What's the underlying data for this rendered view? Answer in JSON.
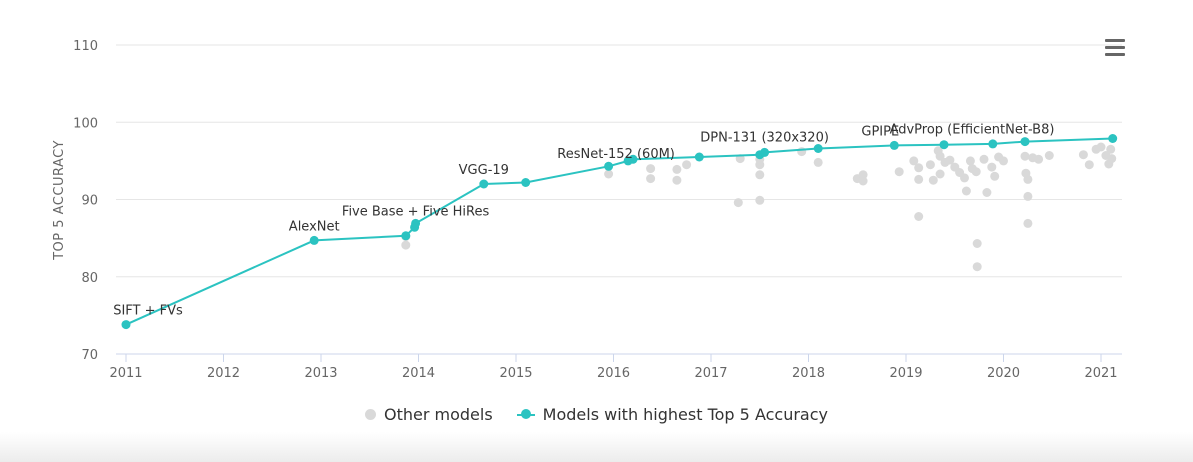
{
  "chart_data": {
    "type": "scatter",
    "ylabel": "TOP 5 ACCURACY",
    "xlabel": "",
    "xlim": [
      2010.9,
      2021.2
    ],
    "ylim": [
      70,
      110
    ],
    "x_ticks": [
      "2011",
      "2012",
      "2013",
      "2014",
      "2015",
      "2016",
      "2017",
      "2018",
      "2019",
      "2020",
      "2021"
    ],
    "y_ticks": [
      "70",
      "80",
      "90",
      "100",
      "110"
    ],
    "grid": true,
    "legend_position": "bottom",
    "colors": {
      "sota": "#2bc3c1",
      "other": "#d9d9d9",
      "grid": "#e6e6e6",
      "axis": "#ccd6eb",
      "text": "#666666"
    },
    "series": [
      {
        "name": "Other models",
        "points": [
          [
            2013.87,
            84.1
          ],
          [
            2013.87,
            85.2
          ],
          [
            2015.95,
            93.3
          ],
          [
            2016.38,
            94.0
          ],
          [
            2016.38,
            92.7
          ],
          [
            2016.65,
            93.9
          ],
          [
            2016.65,
            92.5
          ],
          [
            2016.75,
            94.5
          ],
          [
            2017.28,
            89.6
          ],
          [
            2017.3,
            95.3
          ],
          [
            2017.5,
            89.9
          ],
          [
            2017.5,
            93.2
          ],
          [
            2017.5,
            94.5
          ],
          [
            2017.5,
            95.2
          ],
          [
            2017.93,
            96.2
          ],
          [
            2018.1,
            94.8
          ],
          [
            2018.5,
            92.7
          ],
          [
            2018.56,
            93.2
          ],
          [
            2018.56,
            92.4
          ],
          [
            2018.93,
            93.6
          ],
          [
            2019.08,
            95.0
          ],
          [
            2019.13,
            94.1
          ],
          [
            2019.13,
            92.6
          ],
          [
            2019.13,
            87.8
          ],
          [
            2019.25,
            94.5
          ],
          [
            2019.28,
            92.5
          ],
          [
            2019.33,
            96.3
          ],
          [
            2019.35,
            95.6
          ],
          [
            2019.35,
            93.3
          ],
          [
            2019.4,
            94.8
          ],
          [
            2019.45,
            95.1
          ],
          [
            2019.5,
            94.2
          ],
          [
            2019.55,
            93.5
          ],
          [
            2019.6,
            92.8
          ],
          [
            2019.62,
            91.1
          ],
          [
            2019.66,
            95.0
          ],
          [
            2019.68,
            94.0
          ],
          [
            2019.72,
            93.6
          ],
          [
            2019.73,
            84.3
          ],
          [
            2019.73,
            81.3
          ],
          [
            2019.8,
            95.2
          ],
          [
            2019.83,
            90.9
          ],
          [
            2019.88,
            94.2
          ],
          [
            2019.91,
            93.0
          ],
          [
            2019.95,
            95.5
          ],
          [
            2020.0,
            95.0
          ],
          [
            2020.22,
            95.6
          ],
          [
            2020.23,
            93.4
          ],
          [
            2020.25,
            92.6
          ],
          [
            2020.25,
            90.4
          ],
          [
            2020.25,
            86.9
          ],
          [
            2020.3,
            95.4
          ],
          [
            2020.36,
            95.2
          ],
          [
            2020.47,
            95.7
          ],
          [
            2020.82,
            95.8
          ],
          [
            2020.88,
            94.5
          ],
          [
            2020.95,
            96.5
          ],
          [
            2021.0,
            96.8
          ],
          [
            2021.05,
            95.7
          ],
          [
            2021.08,
            94.6
          ],
          [
            2021.1,
            96.5
          ],
          [
            2021.11,
            95.3
          ]
        ]
      },
      {
        "name": "Models with highest Top 5 Accuracy",
        "points": [
          [
            2011.0,
            73.8
          ],
          [
            2012.93,
            84.7
          ],
          [
            2013.87,
            85.3
          ],
          [
            2013.96,
            86.4
          ],
          [
            2013.97,
            86.9
          ],
          [
            2014.67,
            92.0
          ],
          [
            2015.1,
            92.2
          ],
          [
            2015.95,
            94.3
          ],
          [
            2016.15,
            95.0
          ],
          [
            2016.2,
            95.2
          ],
          [
            2016.88,
            95.5
          ],
          [
            2017.5,
            95.8
          ],
          [
            2017.55,
            96.1
          ],
          [
            2018.1,
            96.6
          ],
          [
            2018.88,
            97.0
          ],
          [
            2019.39,
            97.1
          ],
          [
            2019.89,
            97.2
          ],
          [
            2020.22,
            97.5
          ],
          [
            2021.12,
            97.9
          ]
        ]
      }
    ],
    "annotations": [
      {
        "text": "SIFT + FVs",
        "x": 2011.0,
        "y": 73.8
      },
      {
        "text": "AlexNet",
        "x": 2012.93,
        "y": 84.7
      },
      {
        "text": "Five Base + Five HiRes",
        "x": 2013.97,
        "y": 86.9
      },
      {
        "text": "VGG-19",
        "x": 2014.67,
        "y": 92.0
      },
      {
        "text": "ResNet-152 (60M)",
        "x": 2016.15,
        "y": 95.0
      },
      {
        "text": "DPN-131 (320x320)",
        "x": 2017.55,
        "y": 96.1
      },
      {
        "text": "GPIPE",
        "x": 2018.88,
        "y": 97.0
      },
      {
        "text": "AdvProp (EfficientNet-B8)",
        "x": 2019.39,
        "y": 97.1
      }
    ]
  },
  "legend": {
    "other_label": "Other models",
    "sota_label": "Models with highest Top 5 Accuracy"
  },
  "menu": {
    "icon": "hamburger-menu-icon"
  }
}
